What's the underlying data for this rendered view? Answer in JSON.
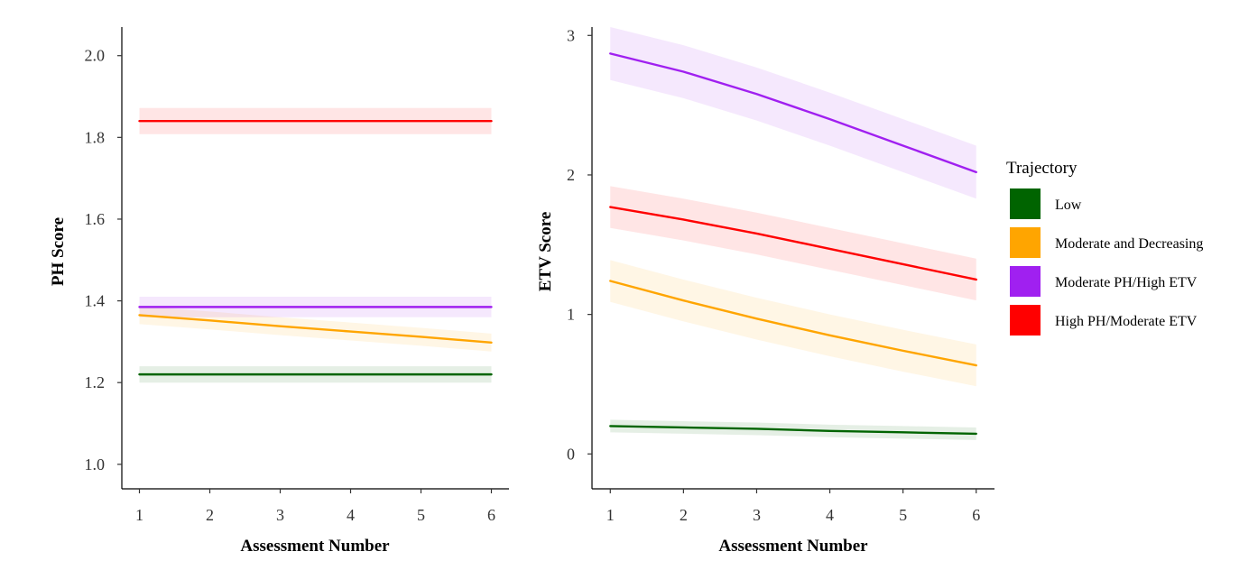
{
  "chart_data": [
    {
      "type": "line",
      "id": "ph",
      "title": "",
      "xlabel": "Assessment Number",
      "ylabel": "PH Score",
      "x": [
        1,
        2,
        3,
        4,
        5,
        6
      ],
      "xticks": [
        "1",
        "2",
        "3",
        "4",
        "5",
        "6"
      ],
      "xlim": [
        0.75,
        6.25
      ],
      "yticks": [
        "1.0",
        "1.2",
        "1.4",
        "1.6",
        "1.8",
        "2.0"
      ],
      "ylim": [
        0.94,
        2.07
      ],
      "grid": false,
      "series": [
        {
          "name": "Low",
          "values": [
            1.22,
            1.22,
            1.22,
            1.22,
            1.22,
            1.22
          ],
          "band": 0.02
        },
        {
          "name": "Moderate and Decreasing",
          "values": [
            1.365,
            1.352,
            1.338,
            1.325,
            1.312,
            1.298
          ],
          "band": 0.022
        },
        {
          "name": "Moderate PH/High ETV",
          "values": [
            1.385,
            1.385,
            1.385,
            1.385,
            1.385,
            1.385
          ],
          "band": 0.025
        },
        {
          "name": "High PH/Moderate ETV",
          "values": [
            1.84,
            1.84,
            1.84,
            1.84,
            1.84,
            1.84
          ],
          "band": 0.032
        }
      ]
    },
    {
      "type": "line",
      "id": "etv",
      "title": "",
      "xlabel": "Assessment Number",
      "ylabel": "ETV Score",
      "x": [
        1,
        2,
        3,
        4,
        5,
        6
      ],
      "xticks": [
        "1",
        "2",
        "3",
        "4",
        "5",
        "6"
      ],
      "xlim": [
        0.75,
        6.25
      ],
      "yticks": [
        "0",
        "1",
        "2",
        "3"
      ],
      "ylim": [
        -0.25,
        3.06
      ],
      "grid": false,
      "series": [
        {
          "name": "Low",
          "values": [
            0.2,
            0.19,
            0.18,
            0.165,
            0.155,
            0.145
          ],
          "band": 0.045
        },
        {
          "name": "Moderate and Decreasing",
          "values": [
            1.24,
            1.1,
            0.97,
            0.85,
            0.74,
            0.635
          ],
          "band": 0.15
        },
        {
          "name": "Moderate PH/High ETV",
          "values": [
            2.87,
            2.74,
            2.58,
            2.4,
            2.21,
            2.02
          ],
          "band": 0.19
        },
        {
          "name": "High PH/Moderate ETV",
          "values": [
            1.77,
            1.68,
            1.58,
            1.47,
            1.36,
            1.25
          ],
          "band": 0.15
        }
      ]
    }
  ],
  "legend": {
    "title": "Trajectory",
    "placement": "right",
    "entries": [
      {
        "label": "Low",
        "color": "#006400"
      },
      {
        "label": "Moderate and Decreasing",
        "color": "#FFA500"
      },
      {
        "label": "Moderate PH/High ETV",
        "color": "#A020F0"
      },
      {
        "label": "High PH/Moderate ETV",
        "color": "#FF0000"
      }
    ]
  }
}
